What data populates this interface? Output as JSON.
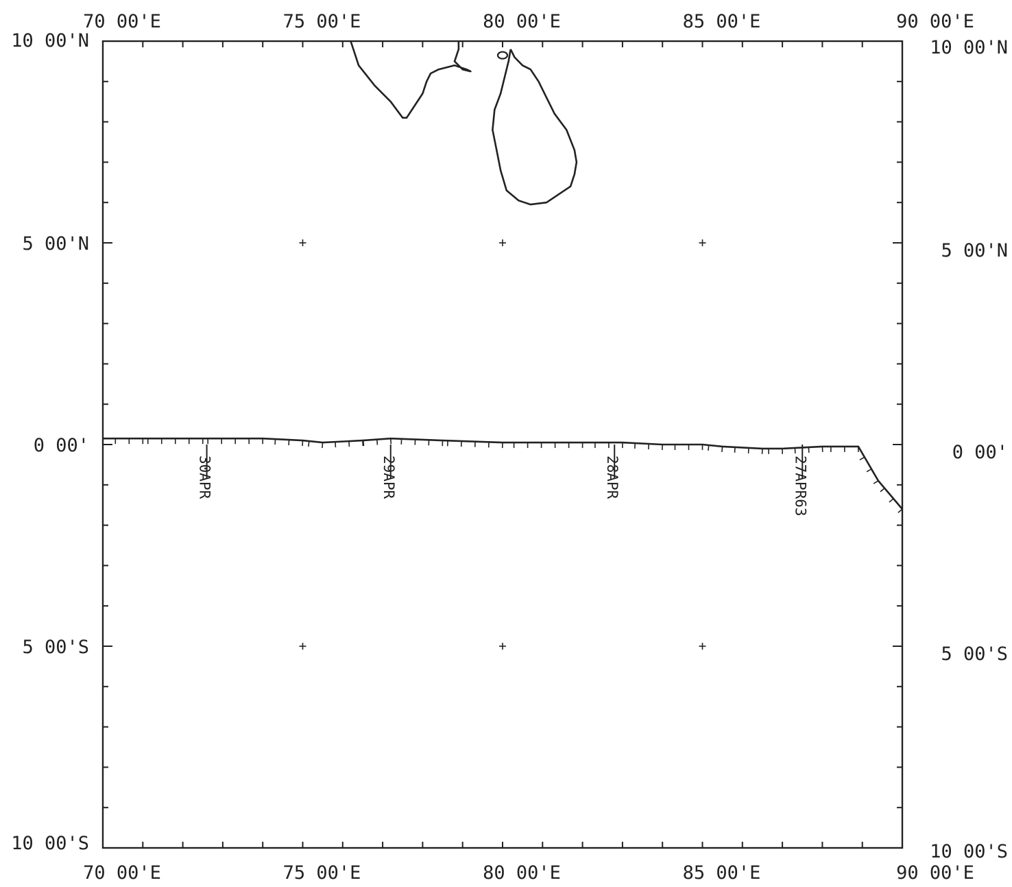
{
  "chart_data": {
    "type": "map",
    "projection": "mercator",
    "lon_range": [
      70,
      90
    ],
    "lat_range": [
      -10,
      10
    ],
    "top_lon_labels": [
      {
        "lon": 70,
        "text": "70 00'E"
      },
      {
        "lon": 75,
        "text": "75 00'E"
      },
      {
        "lon": 80,
        "text": "80 00'E"
      },
      {
        "lon": 85,
        "text": "85 00'E"
      },
      {
        "lon": 90,
        "text": "90 00'E"
      }
    ],
    "bottom_lon_labels": [
      {
        "lon": 70,
        "text": "70 00'E"
      },
      {
        "lon": 75,
        "text": "75 00'E"
      },
      {
        "lon": 80,
        "text": "80 00'E"
      },
      {
        "lon": 85,
        "text": "85 00'E"
      },
      {
        "lon": 90,
        "text": "90 00'E"
      }
    ],
    "left_lat_labels": [
      {
        "lat": 10,
        "text": "10 00'N"
      },
      {
        "lat": 5,
        "text": "5 00'N"
      },
      {
        "lat": 0,
        "text": "0 00'"
      },
      {
        "lat": -5,
        "text": "5 00'S"
      },
      {
        "lat": -10,
        "text": "10 00'S"
      }
    ],
    "right_lat_labels": [
      {
        "lat": 10,
        "text": "10 00'N"
      },
      {
        "lat": 5,
        "text": "5 00'N"
      },
      {
        "lat": 0,
        "text": "0 00'"
      },
      {
        "lat": -5,
        "text": "5 00'S"
      },
      {
        "lat": -10,
        "text": "10 00'S"
      }
    ],
    "grid_crosses": [
      {
        "lon": 75,
        "lat": 5
      },
      {
        "lon": 80,
        "lat": 5
      },
      {
        "lon": 85,
        "lat": 5
      },
      {
        "lon": 75,
        "lat": -5
      },
      {
        "lon": 80,
        "lat": -5
      },
      {
        "lon": 85,
        "lat": -5
      }
    ],
    "track": {
      "points": [
        {
          "lon": 90,
          "lat": -1.6
        },
        {
          "lon": 89.4,
          "lat": -0.9
        },
        {
          "lon": 88.9,
          "lat": -0.05
        },
        {
          "lon": 88,
          "lat": -0.05
        },
        {
          "lon": 87,
          "lat": -0.1
        },
        {
          "lon": 86.5,
          "lat": -0.1
        },
        {
          "lon": 85.5,
          "lat": -0.05
        },
        {
          "lon": 85,
          "lat": 0.0
        },
        {
          "lon": 84,
          "lat": 0.0
        },
        {
          "lon": 83,
          "lat": 0.05
        },
        {
          "lon": 82,
          "lat": 0.05
        },
        {
          "lon": 80,
          "lat": 0.05
        },
        {
          "lon": 78.5,
          "lat": 0.1
        },
        {
          "lon": 77.2,
          "lat": 0.15
        },
        {
          "lon": 76.5,
          "lat": 0.1
        },
        {
          "lon": 75.5,
          "lat": 0.05
        },
        {
          "lon": 75,
          "lat": 0.1
        },
        {
          "lon": 74,
          "lat": 0.15
        },
        {
          "lon": 72.5,
          "lat": 0.15
        },
        {
          "lon": 71,
          "lat": 0.15
        },
        {
          "lon": 70,
          "lat": 0.15
        }
      ],
      "day_markers": [
        {
          "lon": 87.5,
          "text": "27APR63"
        },
        {
          "lon": 82.8,
          "text": "28APR"
        },
        {
          "lon": 77.2,
          "text": "29APR"
        },
        {
          "lon": 72.6,
          "text": "30APR"
        }
      ]
    },
    "coastlines": [
      {
        "name": "India",
        "points": [
          [
            76.2,
            10.0
          ],
          [
            76.4,
            9.4
          ],
          [
            76.8,
            8.9
          ],
          [
            77.2,
            8.5
          ],
          [
            77.5,
            8.1
          ],
          [
            77.6,
            8.1
          ],
          [
            77.8,
            8.4
          ],
          [
            78.0,
            8.7
          ],
          [
            78.1,
            9.0
          ],
          [
            78.2,
            9.2
          ],
          [
            78.4,
            9.3
          ],
          [
            78.8,
            9.4
          ],
          [
            79.1,
            9.3
          ],
          [
            79.2,
            9.25
          ],
          [
            79.0,
            9.3
          ],
          [
            78.8,
            9.5
          ],
          [
            78.9,
            9.8
          ],
          [
            78.9,
            10.0
          ]
        ]
      },
      {
        "name": "Sri Lanka",
        "points": [
          [
            80.2,
            9.8
          ],
          [
            80.3,
            9.6
          ],
          [
            80.5,
            9.4
          ],
          [
            80.7,
            9.3
          ],
          [
            80.9,
            9.0
          ],
          [
            81.1,
            8.6
          ],
          [
            81.3,
            8.2
          ],
          [
            81.6,
            7.8
          ],
          [
            81.8,
            7.3
          ],
          [
            81.85,
            7.0
          ],
          [
            81.8,
            6.7
          ],
          [
            81.7,
            6.4
          ],
          [
            81.4,
            6.2
          ],
          [
            81.1,
            6.0
          ],
          [
            80.7,
            5.95
          ],
          [
            80.4,
            6.05
          ],
          [
            80.1,
            6.3
          ],
          [
            79.95,
            6.8
          ],
          [
            79.85,
            7.3
          ],
          [
            79.75,
            7.8
          ],
          [
            79.8,
            8.3
          ],
          [
            79.95,
            8.7
          ],
          [
            80.05,
            9.1
          ],
          [
            80.15,
            9.5
          ],
          [
            80.2,
            9.8
          ]
        ]
      }
    ]
  }
}
